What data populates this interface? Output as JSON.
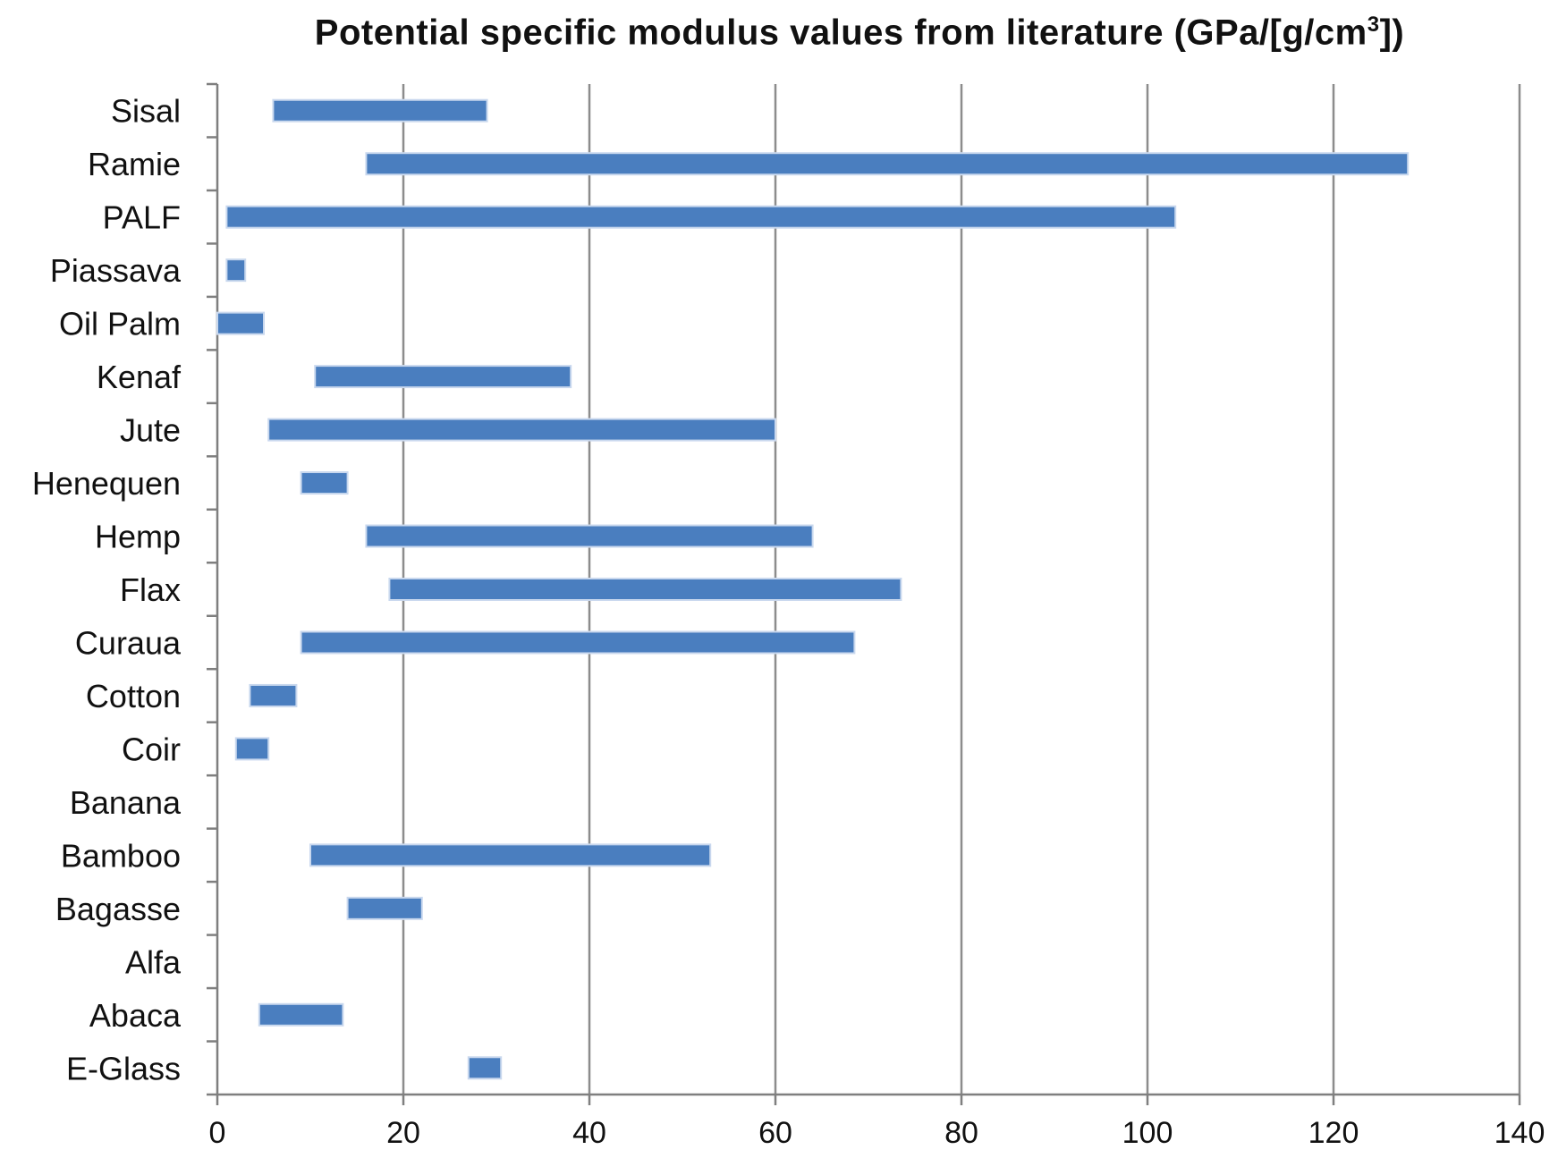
{
  "title": {
    "main": "Potential specific modulus values from literature (GPa/[g/cm",
    "superscript": "3",
    "tail": "])"
  },
  "chart_data": {
    "type": "bar",
    "orientation": "horizontal-range",
    "title": "Potential specific modulus values from literature (GPa/[g/cm3])",
    "xlabel": "",
    "ylabel": "",
    "xlim": [
      0,
      140
    ],
    "x_ticks": [
      0,
      20,
      40,
      60,
      80,
      100,
      120,
      140
    ],
    "grid": "vertical",
    "color": "#4a7ebf",
    "categories": [
      "Sisal",
      "Ramie",
      "PALF",
      "Piassava",
      "Oil Palm",
      "Kenaf",
      "Jute",
      "Henequen",
      "Hemp",
      "Flax",
      "Curaua",
      "Cotton",
      "Coir",
      "Banana",
      "Bamboo",
      "Bagasse",
      "Alfa",
      "Abaca",
      "E-Glass"
    ],
    "ranges": [
      [
        6,
        29
      ],
      [
        16,
        128
      ],
      [
        1,
        103
      ],
      [
        1,
        3
      ],
      [
        0,
        5
      ],
      [
        10.5,
        38
      ],
      [
        5.5,
        60
      ],
      [
        9,
        14
      ],
      [
        16,
        64
      ],
      [
        18.5,
        73.5
      ],
      [
        9,
        68.5
      ],
      [
        3.5,
        8.5
      ],
      [
        2,
        5.5
      ],
      null,
      [
        10,
        53
      ],
      [
        14,
        22
      ],
      null,
      [
        4.5,
        13.5
      ],
      [
        27,
        30.5
      ]
    ]
  }
}
